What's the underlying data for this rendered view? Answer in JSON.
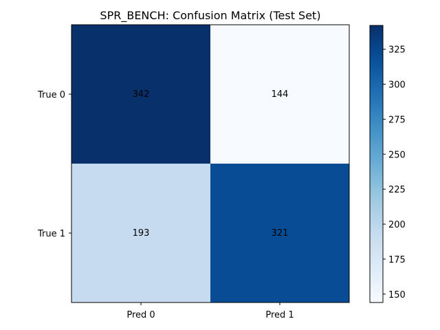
{
  "chart_data": {
    "type": "heatmap",
    "title": "SPR_BENCH: Confusion Matrix (Test Set)",
    "x_tick_labels": [
      "Pred 0",
      "Pred 1"
    ],
    "y_tick_labels": [
      "True 0",
      "True 1"
    ],
    "values": [
      [
        342,
        144
      ],
      [
        193,
        321
      ]
    ],
    "colormap": "Blues",
    "colorbar": {
      "range": [
        144,
        342
      ],
      "ticks": [
        150,
        175,
        200,
        225,
        250,
        275,
        300,
        325
      ]
    },
    "colors": {
      "low": "#f7fbff",
      "high": "#08306b"
    },
    "grid": false
  }
}
